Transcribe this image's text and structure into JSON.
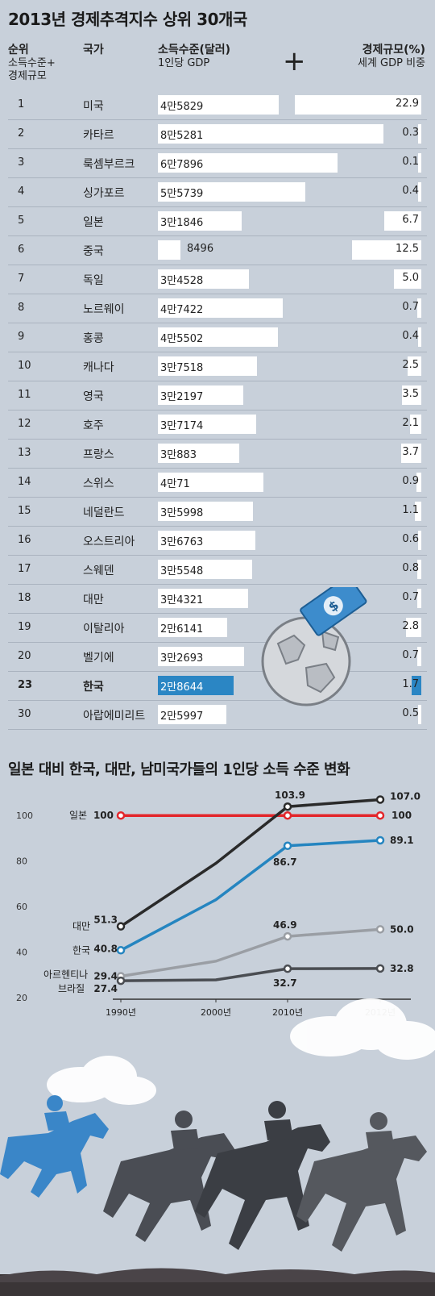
{
  "title": "2013년 경제추격지수 상위 30개국",
  "table": {
    "headers": {
      "rank": "순위",
      "rank_sub1": "소득수준+",
      "rank_sub2": "경제규모",
      "country": "국가",
      "income": "소득수준(달러)",
      "income_sub": "1인당 GDP",
      "plus": "+",
      "share": "경제규모(%)",
      "share_sub": "세계 GDP 비중"
    }
  },
  "chart2": {
    "title": "일본 대비 한국, 대만, 남미국가들의 1인당 소득 수준 변화"
  },
  "chart_data": [
    {
      "type": "table",
      "columns": [
        "순위",
        "국가",
        "소득수준(달러)",
        "경제규모(%)"
      ],
      "rows": [
        {
          "rank": "1",
          "country": "미국",
          "income_label": "4만5829",
          "income": 45829,
          "share_label": "22.9",
          "share": 22.9
        },
        {
          "rank": "2",
          "country": "카타르",
          "income_label": "8만5281",
          "income": 85281,
          "share_label": "0.3",
          "share": 0.3
        },
        {
          "rank": "3",
          "country": "룩셈부르크",
          "income_label": "6만7896",
          "income": 67896,
          "share_label": "0.1",
          "share": 0.1
        },
        {
          "rank": "4",
          "country": "싱가포르",
          "income_label": "5만5739",
          "income": 55739,
          "share_label": "0.4",
          "share": 0.4
        },
        {
          "rank": "5",
          "country": "일본",
          "income_label": "3만1846",
          "income": 31846,
          "share_label": "6.7",
          "share": 6.7
        },
        {
          "rank": "6",
          "country": "중국",
          "income_label": "8496",
          "income": 8496,
          "share_label": "12.5",
          "share": 12.5
        },
        {
          "rank": "7",
          "country": "독일",
          "income_label": "3만4528",
          "income": 34528,
          "share_label": "5.0",
          "share": 5.0
        },
        {
          "rank": "8",
          "country": "노르웨이",
          "income_label": "4만7422",
          "income": 47422,
          "share_label": "0.7",
          "share": 0.7
        },
        {
          "rank": "9",
          "country": "홍콩",
          "income_label": "4만5502",
          "income": 45502,
          "share_label": "0.4",
          "share": 0.4
        },
        {
          "rank": "10",
          "country": "캐나다",
          "income_label": "3만7518",
          "income": 37518,
          "share_label": "2.5",
          "share": 2.5
        },
        {
          "rank": "11",
          "country": "영국",
          "income_label": "3만2197",
          "income": 32197,
          "share_label": "3.5",
          "share": 3.5
        },
        {
          "rank": "12",
          "country": "호주",
          "income_label": "3만7174",
          "income": 37174,
          "share_label": "2.1",
          "share": 2.1
        },
        {
          "rank": "13",
          "country": "프랑스",
          "income_label": "3만883",
          "income": 30883,
          "share_label": "3.7",
          "share": 3.7
        },
        {
          "rank": "14",
          "country": "스위스",
          "income_label": "4만71",
          "income": 40071,
          "share_label": "0.9",
          "share": 0.9
        },
        {
          "rank": "15",
          "country": "네덜란드",
          "income_label": "3만5998",
          "income": 35998,
          "share_label": "1.1",
          "share": 1.1
        },
        {
          "rank": "16",
          "country": "오스트리아",
          "income_label": "3만6763",
          "income": 36763,
          "share_label": "0.6",
          "share": 0.6
        },
        {
          "rank": "17",
          "country": "스웨덴",
          "income_label": "3만5548",
          "income": 35548,
          "share_label": "0.8",
          "share": 0.8
        },
        {
          "rank": "18",
          "country": "대만",
          "income_label": "3만4321",
          "income": 34321,
          "share_label": "0.7",
          "share": 0.7
        },
        {
          "rank": "19",
          "country": "이탈리아",
          "income_label": "2만6141",
          "income": 26141,
          "share_label": "2.8",
          "share": 2.8
        },
        {
          "rank": "20",
          "country": "벨기에",
          "income_label": "3만2693",
          "income": 32693,
          "share_label": "0.7",
          "share": 0.7
        },
        {
          "rank": "23",
          "country": "한국",
          "income_label": "2만8644",
          "income": 28644,
          "share_label": "1.7",
          "share": 1.7,
          "highlight": true
        },
        {
          "rank": "30",
          "country": "아랍에미리트",
          "income_label": "2만5997",
          "income": 25997,
          "share_label": "0.5",
          "share": 0.5
        }
      ]
    },
    {
      "type": "line",
      "x": [
        "1990년",
        "2000년",
        "2010년",
        "2012년"
      ],
      "ylim": [
        20,
        110
      ],
      "yticks": [
        "20",
        "40",
        "60",
        "80",
        "100"
      ],
      "series": [
        {
          "name": "일본",
          "color": "#e3262b",
          "values": [
            100,
            100,
            100,
            100
          ],
          "labels": [
            "100",
            "",
            "",
            "100"
          ]
        },
        {
          "name": "대만",
          "color": "#2a2a2a",
          "values": [
            51.3,
            79,
            103.9,
            107.0
          ],
          "labels": [
            "51.3",
            "",
            "103.9",
            "107.0"
          ]
        },
        {
          "name": "한국",
          "color": "#2585c0",
          "values": [
            40.8,
            63,
            86.7,
            89.1
          ],
          "labels": [
            "40.8",
            "",
            "86.7",
            "89.1"
          ]
        },
        {
          "name": "아르헨티나",
          "color": "#9a9ea4",
          "values": [
            29.4,
            36,
            46.9,
            50.0
          ],
          "labels": [
            "29.4",
            "",
            "46.9",
            "50.0"
          ]
        },
        {
          "name": "브라질",
          "color": "#4a4d52",
          "values": [
            27.4,
            27.8,
            32.7,
            32.8
          ],
          "labels": [
            "27.4",
            "",
            "32.7",
            "32.8"
          ]
        }
      ]
    }
  ]
}
